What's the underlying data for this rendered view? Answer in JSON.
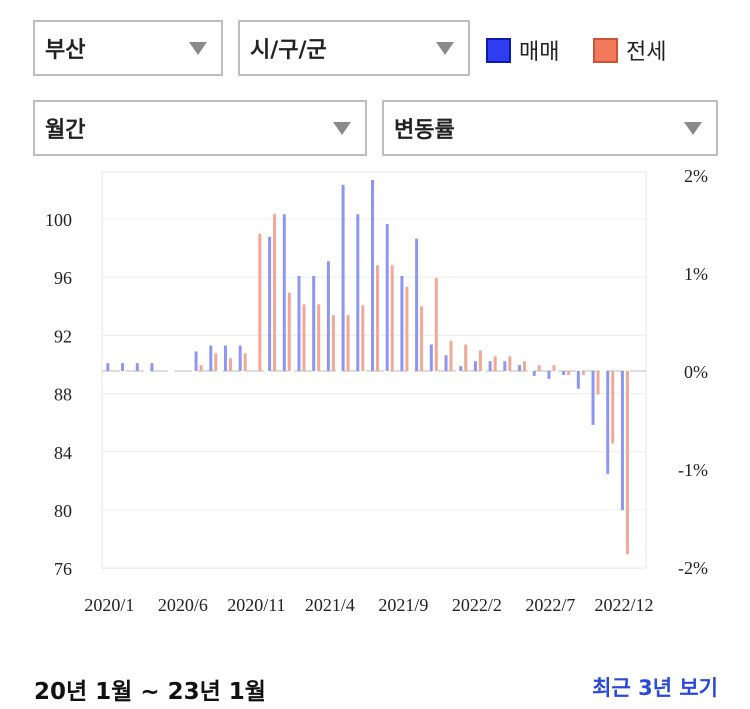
{
  "filters": {
    "region": "부산",
    "district": "시/구/군",
    "period": "월간",
    "metric": "변동률"
  },
  "legend": [
    {
      "label": "매매",
      "color": "#2f3df0",
      "fill": "#2f3df0",
      "border": "#0b1bb0"
    },
    {
      "label": "전세",
      "color": "#f07a5a",
      "fill": "#f07a5a",
      "border": "#c9543a"
    }
  ],
  "footer": {
    "range_text": "20년 1월 ~ 23년 1월",
    "link_text": "최근 3년 보기"
  },
  "chart_data": {
    "type": "bar",
    "title": "",
    "xlabel": "",
    "ylabel": "",
    "left_axis": {
      "ticks": [
        "100",
        "96",
        "92",
        "88",
        "84",
        "80",
        "76"
      ],
      "ylim": [
        76,
        103.5
      ]
    },
    "right_axis": {
      "ticks": [
        "2%",
        "1%",
        "0%",
        "-1%",
        "-2%"
      ],
      "ylim": [
        -2,
        2
      ]
    },
    "x_tick_labels": [
      "2020/1",
      "2020/6",
      "2020/11",
      "2021/4",
      "2021/9",
      "2022/2",
      "2022/7",
      "2022/12"
    ],
    "categories": [
      "2020/1",
      "2020/2",
      "2020/3",
      "2020/4",
      "2020/5",
      "2020/6",
      "2020/7",
      "2020/8",
      "2020/9",
      "2020/10",
      "2020/11",
      "2020/12",
      "2021/1",
      "2021/2",
      "2021/3",
      "2021/4",
      "2021/5",
      "2021/6",
      "2021/7",
      "2021/8",
      "2021/9",
      "2021/10",
      "2021/11",
      "2021/12",
      "2022/1",
      "2022/2",
      "2022/3",
      "2022/4",
      "2022/5",
      "2022/6",
      "2022/7",
      "2022/8",
      "2022/9",
      "2022/10",
      "2022/11",
      "2022/12",
      "2023/1"
    ],
    "series": [
      {
        "name": "매매",
        "color": "#8d97f2",
        "values": [
          0.08,
          0.08,
          0.08,
          0.08,
          0,
          0,
          0.2,
          0.26,
          0.26,
          0.26,
          0,
          1.37,
          1.6,
          0.97,
          0.97,
          1.12,
          1.9,
          1.6,
          1.95,
          1.5,
          0.97,
          1.35,
          0.27,
          0.16,
          0.05,
          0.1,
          0.1,
          0.1,
          0.06,
          -0.05,
          -0.08,
          -0.04,
          -0.18,
          -0.55,
          -1.05,
          -1.42,
          0
        ]
      },
      {
        "name": "전세",
        "color": "#f2a896",
        "values": [
          0,
          0,
          0,
          0,
          0,
          0,
          0.06,
          0.18,
          0.13,
          0.18,
          1.4,
          1.6,
          0.8,
          0.68,
          0.68,
          0.57,
          0.57,
          0.67,
          1.08,
          1.08,
          0.86,
          0.66,
          0.95,
          0.31,
          0.27,
          0.21,
          0.15,
          0.15,
          0.1,
          0.06,
          0.06,
          -0.04,
          -0.04,
          -0.24,
          -0.74,
          -1.87,
          0
        ]
      }
    ],
    "grid": true,
    "legend_position": "top-right"
  }
}
